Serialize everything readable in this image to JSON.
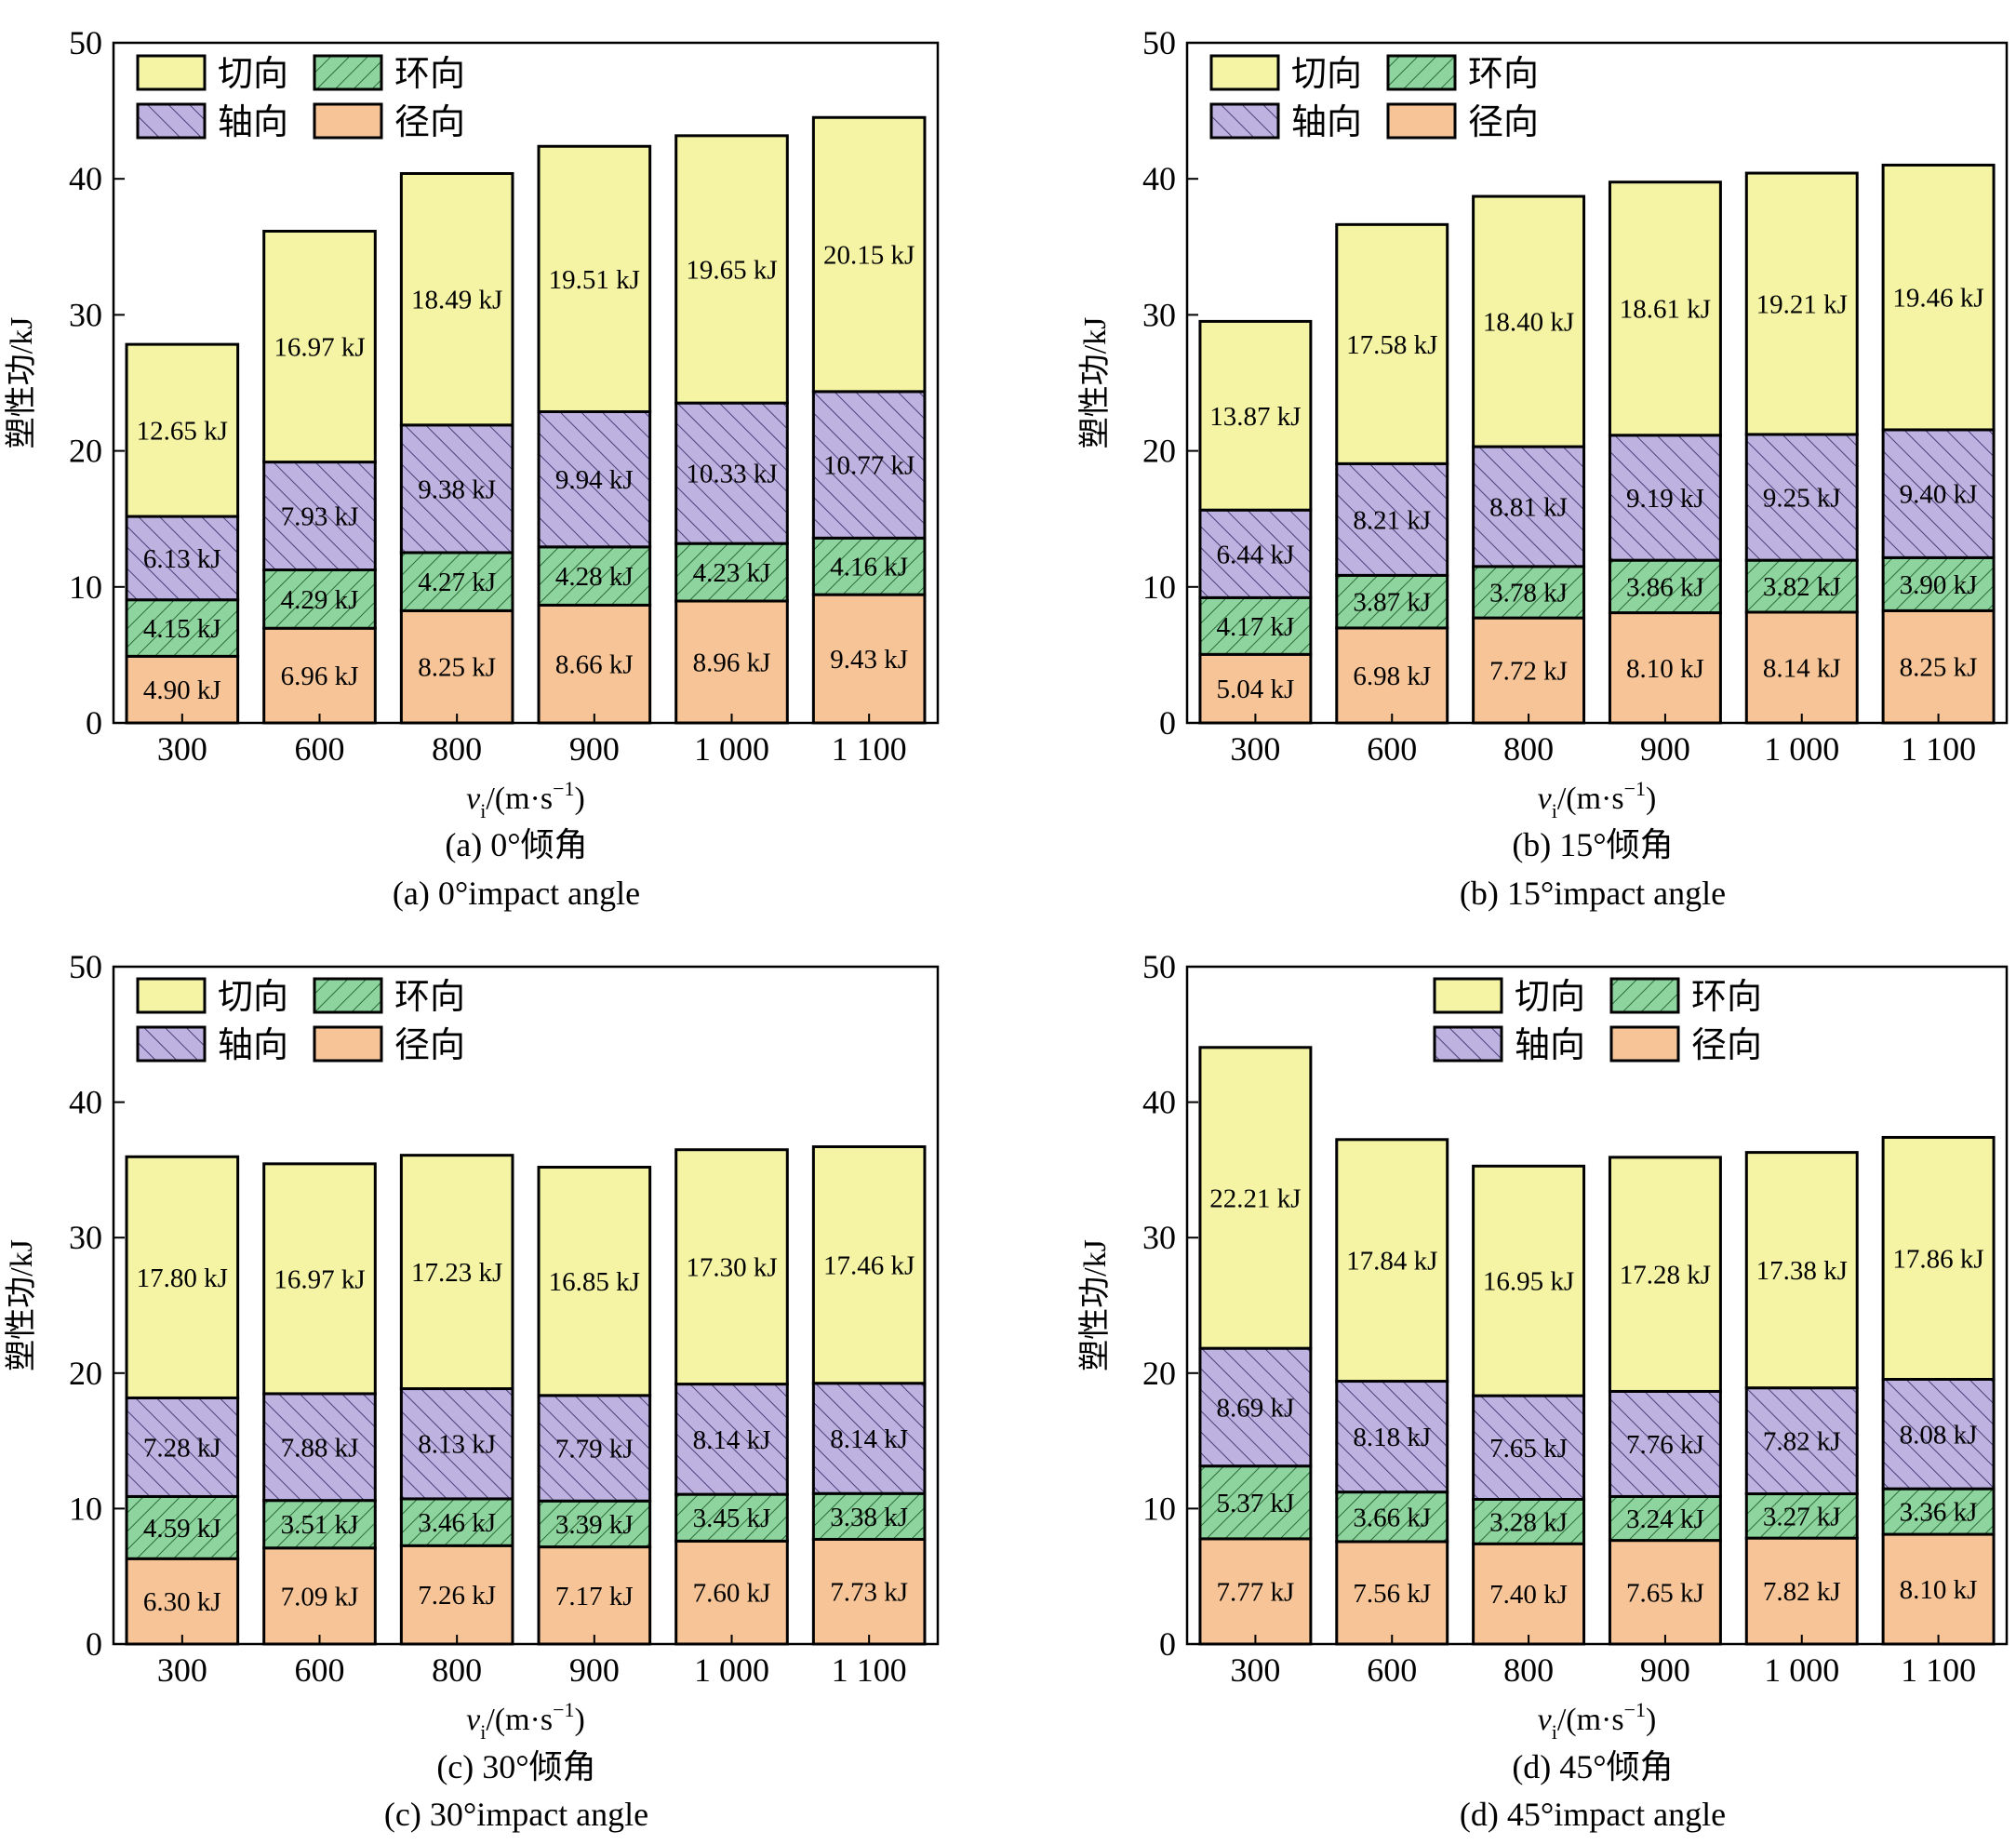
{
  "chart_data": [
    {
      "type": "bar",
      "stacked": true,
      "caption_cn": "(a) 0°倾角",
      "caption_en": "(a) 0°impact angle",
      "xlabel": "v",
      "xlabel_sub": "i",
      "xlabel_unit": "/(m·s",
      "xlabel_exp": "−1",
      "xlabel_close": ")",
      "ylabel": "塑性功/kJ",
      "ylim": [
        0,
        50
      ],
      "yticks": [
        "0",
        "10",
        "20",
        "30",
        "40",
        "50"
      ],
      "categories": [
        "300",
        "600",
        "800",
        "900",
        "1 000",
        "1 100"
      ],
      "series": [
        {
          "name": "径向",
          "values": [
            4.9,
            6.96,
            8.25,
            8.66,
            8.96,
            9.43
          ],
          "labels": [
            "4.90 kJ",
            "6.96 kJ",
            "8.25 kJ",
            "8.66 kJ",
            "8.96 kJ",
            "9.43 kJ"
          ]
        },
        {
          "name": "环向",
          "values": [
            4.15,
            4.29,
            4.27,
            4.28,
            4.23,
            4.16
          ],
          "labels": [
            "4.15 kJ",
            "4.29 kJ",
            "4.27 kJ",
            "4.28 kJ",
            "4.23 kJ",
            "4.16 kJ"
          ]
        },
        {
          "name": "轴向",
          "values": [
            6.13,
            7.93,
            9.38,
            9.94,
            10.33,
            10.77
          ],
          "labels": [
            "6.13 kJ",
            "7.93 kJ",
            "9.38 kJ",
            "9.94 kJ",
            "10.33 kJ",
            "10.77 kJ"
          ]
        },
        {
          "name": "切向",
          "values": [
            12.65,
            16.97,
            18.49,
            19.51,
            19.65,
            20.15
          ],
          "labels": [
            "12.65 kJ",
            "16.97 kJ",
            "18.49 kJ",
            "19.51 kJ",
            "19.65 kJ",
            "20.15 kJ"
          ]
        }
      ],
      "legend_placement": "top-left"
    },
    {
      "type": "bar",
      "stacked": true,
      "caption_cn": "(b) 15°倾角",
      "caption_en": "(b) 15°impact angle",
      "xlabel": "v",
      "xlabel_sub": "i",
      "xlabel_unit": "/(m·s",
      "xlabel_exp": "−1",
      "xlabel_close": ")",
      "ylabel": "塑性功/kJ",
      "ylim": [
        0,
        50
      ],
      "yticks": [
        "0",
        "10",
        "20",
        "30",
        "40",
        "50"
      ],
      "categories": [
        "300",
        "600",
        "800",
        "900",
        "1 000",
        "1 100"
      ],
      "series": [
        {
          "name": "径向",
          "values": [
            5.04,
            6.98,
            7.72,
            8.1,
            8.14,
            8.25
          ],
          "labels": [
            "5.04 kJ",
            "6.98 kJ",
            "7.72 kJ",
            "8.10 kJ",
            "8.14 kJ",
            "8.25 kJ"
          ]
        },
        {
          "name": "环向",
          "values": [
            4.17,
            3.87,
            3.78,
            3.86,
            3.82,
            3.9
          ],
          "labels": [
            "4.17 kJ",
            "3.87 kJ",
            "3.78 kJ",
            "3.86 kJ",
            "3.82 kJ",
            "3.90 kJ"
          ]
        },
        {
          "name": "轴向",
          "values": [
            6.44,
            8.21,
            8.81,
            9.19,
            9.25,
            9.4
          ],
          "labels": [
            "6.44 kJ",
            "8.21 kJ",
            "8.81 kJ",
            "9.19 kJ",
            "9.25 kJ",
            "9.40 kJ"
          ]
        },
        {
          "name": "切向",
          "values": [
            13.87,
            17.58,
            18.4,
            18.61,
            19.21,
            19.46
          ],
          "labels": [
            "13.87 kJ",
            "17.58 kJ",
            "18.40 kJ",
            "18.61 kJ",
            "19.21 kJ",
            "19.46 kJ"
          ]
        }
      ],
      "legend_placement": "top-left"
    },
    {
      "type": "bar",
      "stacked": true,
      "caption_cn": "(c) 30°倾角",
      "caption_en": "(c) 30°impact angle",
      "xlabel": "v",
      "xlabel_sub": "i",
      "xlabel_unit": "/(m·s",
      "xlabel_exp": "−1",
      "xlabel_close": ")",
      "ylabel": "塑性功/kJ",
      "ylim": [
        0,
        50
      ],
      "yticks": [
        "0",
        "10",
        "20",
        "30",
        "40",
        "50"
      ],
      "categories": [
        "300",
        "600",
        "800",
        "900",
        "1 000",
        "1 100"
      ],
      "series": [
        {
          "name": "径向",
          "values": [
            6.3,
            7.09,
            7.26,
            7.17,
            7.6,
            7.73
          ],
          "labels": [
            "6.30 kJ",
            "7.09 kJ",
            "7.26 kJ",
            "7.17 kJ",
            "7.60 kJ",
            "7.73 kJ"
          ]
        },
        {
          "name": "环向",
          "values": [
            4.59,
            3.51,
            3.46,
            3.39,
            3.45,
            3.38
          ],
          "labels": [
            "4.59 kJ",
            "3.51 kJ",
            "3.46 kJ",
            "3.39 kJ",
            "3.45 kJ",
            "3.38 kJ"
          ]
        },
        {
          "name": "轴向",
          "values": [
            7.28,
            7.88,
            8.13,
            7.79,
            8.14,
            8.14
          ],
          "labels": [
            "7.28 kJ",
            "7.88 kJ",
            "8.13 kJ",
            "7.79 kJ",
            "8.14 kJ",
            "8.14 kJ"
          ]
        },
        {
          "name": "切向",
          "values": [
            17.8,
            16.97,
            17.23,
            16.85,
            17.3,
            17.46
          ],
          "labels": [
            "17.80 kJ",
            "16.97 kJ",
            "17.23 kJ",
            "16.85 kJ",
            "17.30 kJ",
            "17.46 kJ"
          ]
        }
      ],
      "legend_placement": "top-left"
    },
    {
      "type": "bar",
      "stacked": true,
      "caption_cn": "(d) 45°倾角",
      "caption_en": "(d) 45°impact angle",
      "xlabel": "v",
      "xlabel_sub": "i",
      "xlabel_unit": "/(m·s",
      "xlabel_exp": "−1",
      "xlabel_close": ")",
      "ylabel": "塑性功/kJ",
      "ylim": [
        0,
        50
      ],
      "yticks": [
        "0",
        "10",
        "20",
        "30",
        "40",
        "50"
      ],
      "categories": [
        "300",
        "600",
        "800",
        "900",
        "1 000",
        "1 100"
      ],
      "series": [
        {
          "name": "径向",
          "values": [
            7.77,
            7.56,
            7.4,
            7.65,
            7.82,
            8.1
          ],
          "labels": [
            "7.77 kJ",
            "7.56 kJ",
            "7.40 kJ",
            "7.65 kJ",
            "7.82 kJ",
            "8.10 kJ"
          ]
        },
        {
          "name": "环向",
          "values": [
            5.37,
            3.66,
            3.28,
            3.24,
            3.27,
            3.36
          ],
          "labels": [
            "5.37 kJ",
            "3.66 kJ",
            "3.28 kJ",
            "3.24 kJ",
            "3.27 kJ",
            "3.36 kJ"
          ]
        },
        {
          "name": "轴向",
          "values": [
            8.69,
            8.18,
            7.65,
            7.76,
            7.82,
            8.08
          ],
          "labels": [
            "8.69 kJ",
            "8.18 kJ",
            "7.65 kJ",
            "7.76 kJ",
            "7.82 kJ",
            "8.08 kJ"
          ]
        },
        {
          "name": "切向",
          "values": [
            22.21,
            17.84,
            16.95,
            17.28,
            17.38,
            17.86
          ],
          "labels": [
            "22.21 kJ",
            "17.84 kJ",
            "16.95 kJ",
            "17.28 kJ",
            "17.38 kJ",
            "17.86 kJ"
          ]
        }
      ],
      "legend_placement": "top-right"
    }
  ],
  "colors": {
    "切向": "#f4f4a4",
    "环向": "#8ed49e",
    "轴向": "#bdb2e0",
    "径向": "#f6c496"
  },
  "legend_order": [
    "切向",
    "环向",
    "轴向",
    "径向"
  ]
}
